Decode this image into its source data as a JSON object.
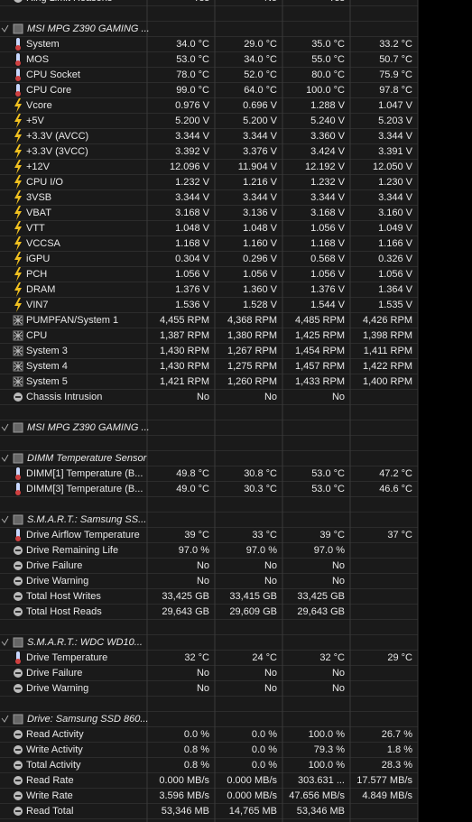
{
  "rows": [
    {
      "label": "Ring Limit Reasons",
      "icon": "other",
      "values": [
        "Yes",
        "No",
        "Yes"
      ]
    },
    {
      "header": "MSI MPG Z390 GAMING ..."
    },
    {
      "label": "System",
      "icon": "temp",
      "values": [
        "34.0 °C",
        "29.0 °C",
        "35.0 °C",
        "33.2 °C"
      ]
    },
    {
      "label": "MOS",
      "icon": "temp",
      "values": [
        "53.0 °C",
        "34.0 °C",
        "55.0 °C",
        "50.7 °C"
      ]
    },
    {
      "label": "CPU Socket",
      "icon": "temp",
      "values": [
        "78.0 °C",
        "52.0 °C",
        "80.0 °C",
        "75.9 °C"
      ]
    },
    {
      "label": "CPU Core",
      "icon": "temp",
      "values": [
        "99.0 °C",
        "64.0 °C",
        "100.0 °C",
        "97.8 °C"
      ]
    },
    {
      "label": "Vcore",
      "icon": "volt",
      "values": [
        "0.976 V",
        "0.696 V",
        "1.288 V",
        "1.047 V"
      ]
    },
    {
      "label": "+5V",
      "icon": "volt",
      "values": [
        "5.200 V",
        "5.200 V",
        "5.240 V",
        "5.203 V"
      ]
    },
    {
      "label": "+3.3V (AVCC)",
      "icon": "volt",
      "values": [
        "3.344 V",
        "3.344 V",
        "3.360 V",
        "3.344 V"
      ]
    },
    {
      "label": "+3.3V (3VCC)",
      "icon": "volt",
      "values": [
        "3.392 V",
        "3.376 V",
        "3.424 V",
        "3.391 V"
      ]
    },
    {
      "label": "+12V",
      "icon": "volt",
      "values": [
        "12.096 V",
        "11.904 V",
        "12.192 V",
        "12.050 V"
      ]
    },
    {
      "label": "CPU I/O",
      "icon": "volt",
      "values": [
        "1.232 V",
        "1.216 V",
        "1.232 V",
        "1.230 V"
      ]
    },
    {
      "label": "3VSB",
      "icon": "volt",
      "values": [
        "3.344 V",
        "3.344 V",
        "3.344 V",
        "3.344 V"
      ]
    },
    {
      "label": "VBAT",
      "icon": "volt",
      "values": [
        "3.168 V",
        "3.136 V",
        "3.168 V",
        "3.160 V"
      ]
    },
    {
      "label": "VTT",
      "icon": "volt",
      "values": [
        "1.048 V",
        "1.048 V",
        "1.056 V",
        "1.049 V"
      ]
    },
    {
      "label": "VCCSA",
      "icon": "volt",
      "values": [
        "1.168 V",
        "1.160 V",
        "1.168 V",
        "1.166 V"
      ]
    },
    {
      "label": "iGPU",
      "icon": "volt",
      "values": [
        "0.304 V",
        "0.296 V",
        "0.568 V",
        "0.326 V"
      ]
    },
    {
      "label": "PCH",
      "icon": "volt",
      "values": [
        "1.056 V",
        "1.056 V",
        "1.056 V",
        "1.056 V"
      ]
    },
    {
      "label": "DRAM",
      "icon": "volt",
      "values": [
        "1.376 V",
        "1.360 V",
        "1.376 V",
        "1.364 V"
      ]
    },
    {
      "label": "VIN7",
      "icon": "volt",
      "values": [
        "1.536 V",
        "1.528 V",
        "1.544 V",
        "1.535 V"
      ]
    },
    {
      "label": "PUMPFAN/System 1",
      "icon": "fan",
      "values": [
        "4,455 RPM",
        "4,368 RPM",
        "4,485 RPM",
        "4,426 RPM"
      ]
    },
    {
      "label": "CPU",
      "icon": "fan",
      "values": [
        "1,387 RPM",
        "1,380 RPM",
        "1,425 RPM",
        "1,398 RPM"
      ]
    },
    {
      "label": "System 3",
      "icon": "fan",
      "values": [
        "1,430 RPM",
        "1,267 RPM",
        "1,454 RPM",
        "1,411 RPM"
      ]
    },
    {
      "label": "System 4",
      "icon": "fan",
      "values": [
        "1,430 RPM",
        "1,275 RPM",
        "1,457 RPM",
        "1,422 RPM"
      ]
    },
    {
      "label": "System 5",
      "icon": "fan",
      "values": [
        "1,421 RPM",
        "1,260 RPM",
        "1,433 RPM",
        "1,400 RPM"
      ]
    },
    {
      "label": "Chassis Intrusion",
      "icon": "other",
      "values": [
        "No",
        "No",
        "No"
      ]
    },
    {
      "header": "MSI MPG Z390 GAMING ..."
    },
    {
      "header": "DIMM Temperature Sensor"
    },
    {
      "label": "DIMM[1] Temperature (B...",
      "icon": "temp",
      "values": [
        "49.8 °C",
        "30.8 °C",
        "53.0 °C",
        "47.2 °C"
      ]
    },
    {
      "label": "DIMM[3] Temperature (B...",
      "icon": "temp",
      "values": [
        "49.0 °C",
        "30.3 °C",
        "53.0 °C",
        "46.6 °C"
      ]
    },
    {
      "header": "S.M.A.R.T.: Samsung SS..."
    },
    {
      "label": "Drive Airflow Temperature",
      "icon": "temp",
      "values": [
        "39 °C",
        "33 °C",
        "39 °C",
        "37 °C"
      ]
    },
    {
      "label": "Drive Remaining Life",
      "icon": "other",
      "values": [
        "97.0 %",
        "97.0 %",
        "97.0 %"
      ]
    },
    {
      "label": "Drive Failure",
      "icon": "other",
      "values": [
        "No",
        "No",
        "No"
      ]
    },
    {
      "label": "Drive Warning",
      "icon": "other",
      "values": [
        "No",
        "No",
        "No"
      ]
    },
    {
      "label": "Total Host Writes",
      "icon": "other",
      "values": [
        "33,425 GB",
        "33,415 GB",
        "33,425 GB"
      ]
    },
    {
      "label": "Total Host Reads",
      "icon": "other",
      "values": [
        "29,643 GB",
        "29,609 GB",
        "29,643 GB"
      ]
    },
    {
      "header": "S.M.A.R.T.: WDC WD10..."
    },
    {
      "label": "Drive Temperature",
      "icon": "temp",
      "values": [
        "32 °C",
        "24 °C",
        "32 °C",
        "29 °C"
      ]
    },
    {
      "label": "Drive Failure",
      "icon": "other",
      "values": [
        "No",
        "No",
        "No"
      ]
    },
    {
      "label": "Drive Warning",
      "icon": "other",
      "values": [
        "No",
        "No",
        "No"
      ]
    },
    {
      "header": "Drive: Samsung SSD 860..."
    },
    {
      "label": "Read Activity",
      "icon": "other",
      "values": [
        "0.0 %",
        "0.0 %",
        "100.0 %",
        "26.7 %"
      ]
    },
    {
      "label": "Write Activity",
      "icon": "other",
      "values": [
        "0.8 %",
        "0.0 %",
        "79.3 %",
        "1.8 %"
      ]
    },
    {
      "label": "Total Activity",
      "icon": "other",
      "values": [
        "0.8 %",
        "0.0 %",
        "100.0 %",
        "28.3 %"
      ]
    },
    {
      "label": "Read Rate",
      "icon": "other",
      "values": [
        "0.000 MB/s",
        "0.000 MB/s",
        "303.631 ...",
        "17.577 MB/s"
      ]
    },
    {
      "label": "Write Rate",
      "icon": "other",
      "values": [
        "3.596 MB/s",
        "0.000 MB/s",
        "47.656 MB/s",
        "4.849 MB/s"
      ]
    },
    {
      "label": "Read Total",
      "icon": "other",
      "values": [
        "53,346 MB",
        "14,765 MB",
        "53,346 MB"
      ]
    }
  ]
}
